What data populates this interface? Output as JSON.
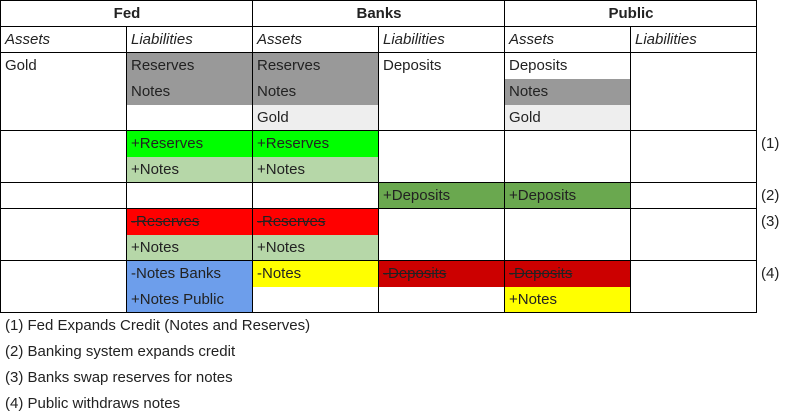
{
  "header": {
    "fed": "Fed",
    "banks": "Banks",
    "public": "Public"
  },
  "subheader": {
    "assets": "Assets",
    "liabilities": "Liabilities"
  },
  "initial": {
    "fed_assets": "Gold",
    "fed_liabilities": [
      "Reserves",
      "Notes"
    ],
    "banks_assets": [
      "Reserves",
      "Notes",
      "Gold"
    ],
    "banks_liabilities": "Deposits",
    "public_assets": [
      "Deposits",
      "Notes",
      "Gold"
    ]
  },
  "step1": {
    "fed_liabilities": [
      "+Reserves",
      "+Notes"
    ],
    "banks_assets": [
      "+Reserves",
      "+Notes"
    ]
  },
  "step2": {
    "banks_liabilities": "+Deposits",
    "public_assets": "+Deposits"
  },
  "step3": {
    "fed_liabilities": [
      "-Reserves",
      "+Notes"
    ],
    "banks_assets": [
      "-Reserves",
      "+Notes"
    ]
  },
  "step4": {
    "fed_liabilities": [
      "-Notes Banks",
      "+Notes Public"
    ],
    "banks_assets": "-Notes",
    "banks_liabilities": "-Deposits",
    "public_assets": [
      "-Deposits",
      "+Notes"
    ]
  },
  "markers": [
    "(1)",
    "(2)",
    "(3)",
    "(4)"
  ],
  "footnotes": [
    "(1) Fed Expands Credit (Notes and Reserves)",
    "(2) Banking system expands credit",
    "(3) Banks swap reserves for notes",
    "(4) Public withdraws notes"
  ],
  "colors": {
    "dark_gray": "#999999",
    "light_gray": "#eeeeee",
    "bright_green": "#00ff00",
    "light_green": "#b6d7a8",
    "dark_green": "#6aa84f",
    "red": "#ff0000",
    "dark_red": "#cc0000",
    "yellow": "#ffff00",
    "blue": "#6d9eeb"
  }
}
